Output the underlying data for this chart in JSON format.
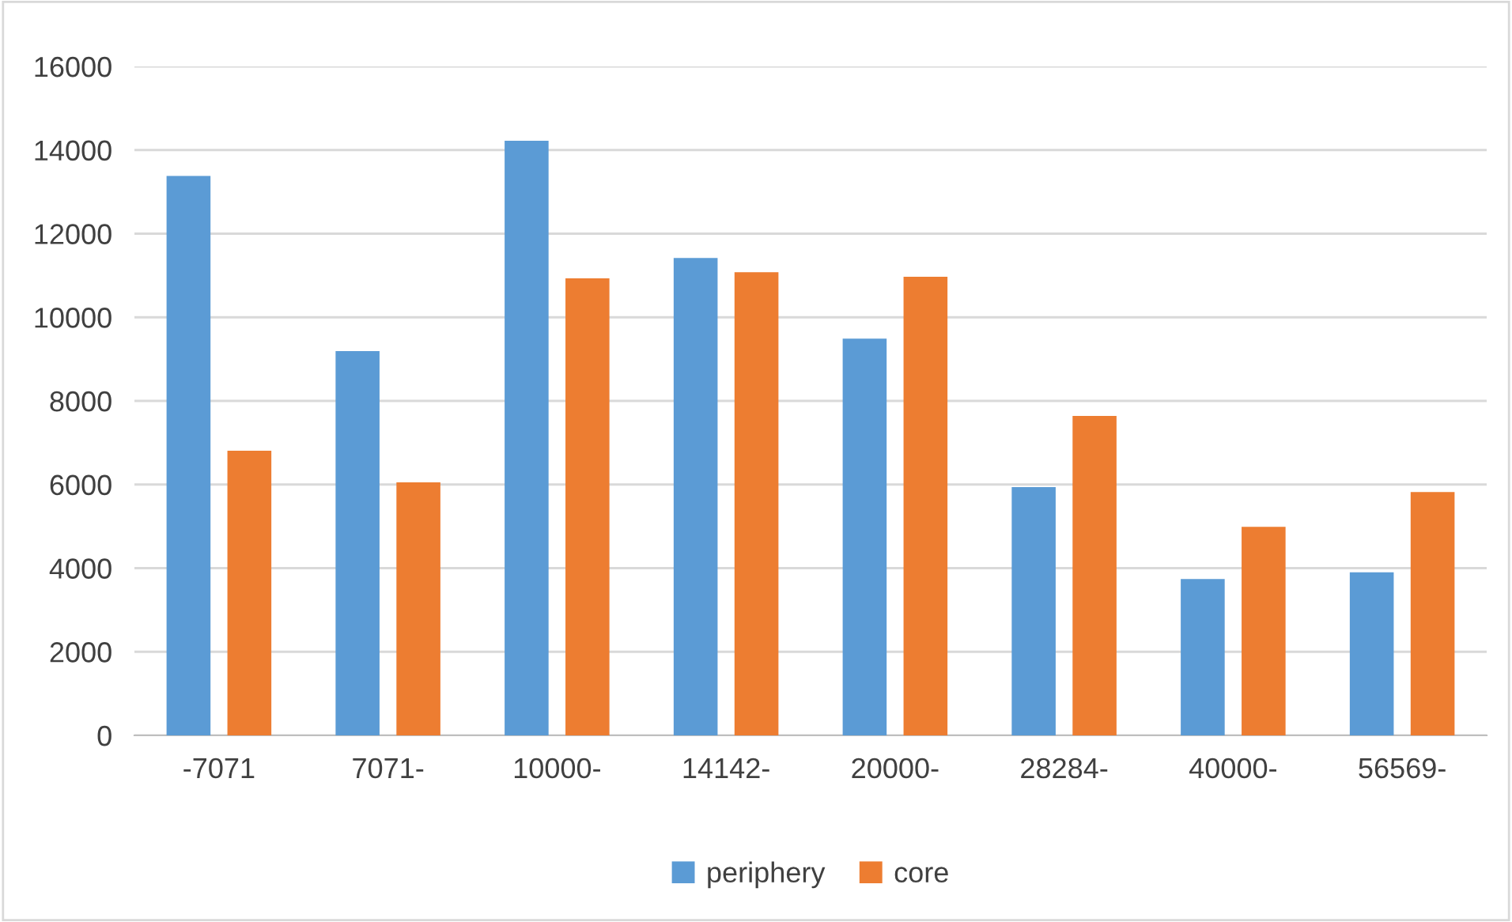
{
  "chart_data": {
    "type": "bar",
    "categories": [
      "-7071",
      "7071-",
      "10000-",
      "14142-",
      "20000-",
      "28284-",
      "40000-",
      "56569-"
    ],
    "series": [
      {
        "name": "periphery",
        "color": "#5b9bd5",
        "values": [
          13380,
          9190,
          14220,
          11420,
          9490,
          5940,
          3740,
          3900
        ]
      },
      {
        "name": "core",
        "color": "#ed7d31",
        "values": [
          6810,
          6050,
          10930,
          11080,
          10970,
          7640,
          4990,
          5820
        ]
      }
    ],
    "ylim": [
      0,
      16000
    ],
    "yticks": [
      0,
      2000,
      4000,
      6000,
      8000,
      10000,
      12000,
      14000,
      16000
    ],
    "grid": "y",
    "legend": "bottom"
  }
}
